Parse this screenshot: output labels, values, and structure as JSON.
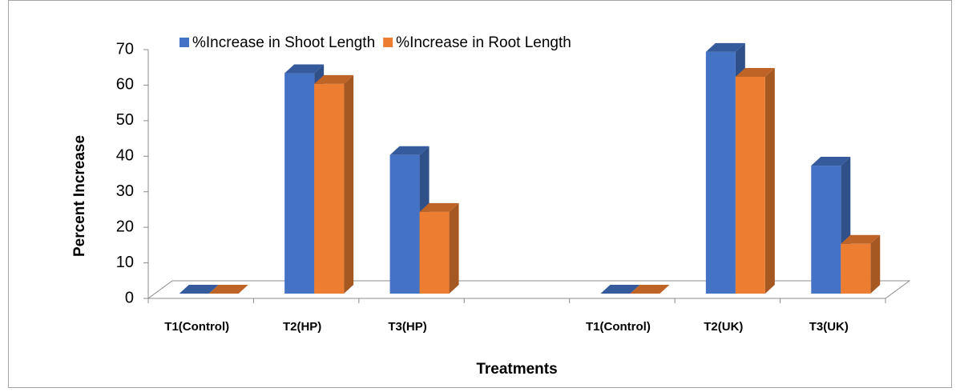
{
  "chart_data": {
    "type": "bar3d",
    "y_label": "Percent Increase",
    "x_label": "Treatments",
    "categories": [
      "T1(Control)",
      "T2(HP)",
      "T3(HP)",
      null,
      "T1(Control)",
      "T2(UK)",
      "T3(UK)"
    ],
    "series": [
      {
        "name": "%Increase in Shoot Length",
        "color": "#4472c4",
        "values": [
          0,
          62,
          39,
          null,
          0,
          68,
          36
        ]
      },
      {
        "name": "%Increase in Root Length",
        "color": "#ed7d31",
        "values": [
          0,
          59,
          23,
          null,
          0,
          61,
          14
        ]
      }
    ],
    "ylim": [
      0,
      70
    ],
    "yticks": [
      0,
      10,
      20,
      30,
      40,
      50,
      60,
      70
    ],
    "legend": "top"
  }
}
